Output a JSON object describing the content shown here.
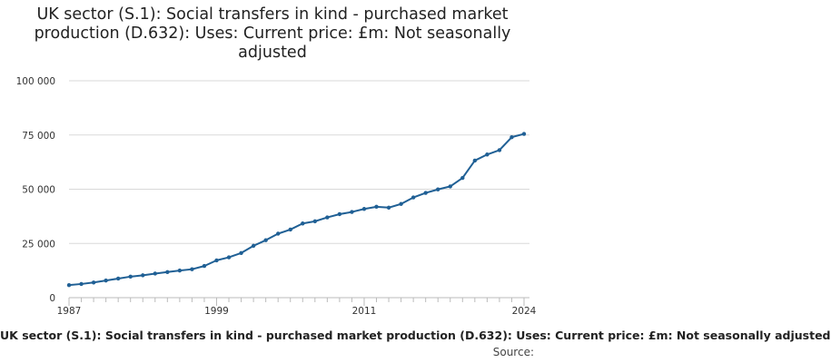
{
  "chart_data": {
    "type": "line",
    "title": "UK sector (S.1): Social transfers in kind - purchased market production (D.632): Uses: Current price: £m: Not seasonally adjusted",
    "title_lines": [
      "UK sector (S.1): Social transfers in kind - purchased market",
      "production (D.632): Uses: Current price: £m: Not seasonally",
      "adjusted"
    ],
    "xlabel": "",
    "ylabel": "",
    "ylim": [
      0,
      100000
    ],
    "xlim": [
      1987,
      2024
    ],
    "y_ticks": [
      0,
      25000,
      50000,
      75000,
      100000
    ],
    "y_tick_labels": [
      "0",
      "25 000",
      "50 000",
      "75 000",
      "100 000"
    ],
    "x_tick_labels": [
      "1987",
      "1999",
      "2011",
      "2024"
    ],
    "x_tick_label_years": [
      1987,
      1999,
      2011,
      2024
    ],
    "grid": true,
    "legend": "bottom",
    "series": [
      {
        "name": "UK sector (S.1): Social transfers in kind - purchased market production (D.632): Uses: Current price: £m: Not seasonally adjusted",
        "color": "#206095",
        "x": [
          1987,
          1988,
          1989,
          1990,
          1991,
          1992,
          1993,
          1994,
          1995,
          1996,
          1997,
          1998,
          1999,
          2000,
          2001,
          2002,
          2003,
          2004,
          2005,
          2006,
          2007,
          2008,
          2009,
          2010,
          2011,
          2012,
          2013,
          2014,
          2015,
          2016,
          2017,
          2018,
          2019,
          2020,
          2021,
          2022,
          2023,
          2024
        ],
        "values": [
          5800,
          6300,
          7000,
          7900,
          8800,
          9700,
          10300,
          11100,
          11800,
          12500,
          13100,
          14600,
          17200,
          18600,
          20600,
          23900,
          26500,
          29500,
          31400,
          34200,
          35200,
          37000,
          38500,
          39500,
          40900,
          41900,
          41500,
          43200,
          46200,
          48300,
          49900,
          51300,
          55200,
          63200,
          66000,
          68000,
          74000,
          75500
        ]
      }
    ],
    "source_text": "Source:"
  }
}
